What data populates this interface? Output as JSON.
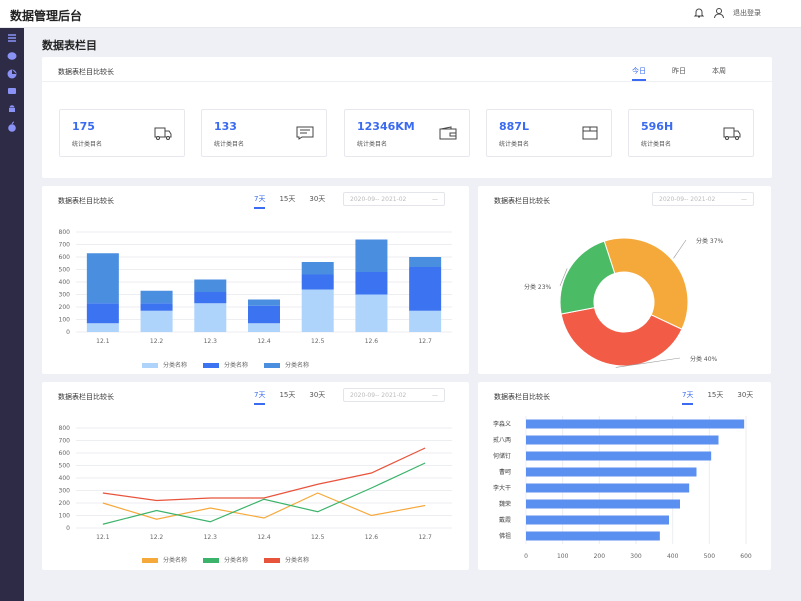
{
  "header": {
    "title": "数据管理后台",
    "logout": "退出登录"
  },
  "page": {
    "title": "数据表栏目"
  },
  "stats_card": {
    "title": "数据表栏目比较长",
    "tabs": [
      "今日",
      "昨日",
      "本周"
    ],
    "active_tab": 0,
    "items": [
      {
        "value": "175",
        "label": "统计类目名",
        "icon": "truck-icon"
      },
      {
        "value": "133",
        "label": "统计类目名",
        "icon": "message-icon"
      },
      {
        "value": "12346KM",
        "label": "统计类目名",
        "icon": "wallet-icon"
      },
      {
        "value": "887L",
        "label": "统计类目名",
        "icon": "box-icon"
      },
      {
        "value": "596H",
        "label": "统计类目名",
        "icon": "truck-icon"
      }
    ]
  },
  "bar_card": {
    "title": "数据表栏目比较长",
    "tabs": [
      "7天",
      "15天",
      "30天"
    ],
    "range": "2020-09-- 2021-02"
  },
  "pie_card": {
    "title": "数据表栏目比较长",
    "range": "2020-09-- 2021-02"
  },
  "line_card": {
    "title": "数据表栏目比较长",
    "tabs": [
      "7天",
      "15天",
      "30天"
    ],
    "range": "2020-09-- 2021-02"
  },
  "hbar_card": {
    "title": "数据表栏目比较长",
    "tabs": [
      "7天",
      "15天",
      "30天"
    ]
  },
  "colors": {
    "accent": "#3a6bf0",
    "sidebar": "#2e2b47"
  },
  "chart_data": [
    {
      "type": "bar",
      "stacked": true,
      "categories": [
        "12.1",
        "12.2",
        "12.3",
        "12.4",
        "12.5",
        "12.6",
        "12.7"
      ],
      "ylim": [
        0,
        800
      ],
      "yticks": [
        0,
        100,
        200,
        300,
        400,
        500,
        600,
        700,
        800
      ],
      "legend_position": "bottom",
      "series": [
        {
          "name": "分类名称",
          "color": "#aed4fb",
          "values": [
            70,
            170,
            230,
            70,
            340,
            300,
            170
          ]
        },
        {
          "name": "分类名称",
          "color": "#3c73f0",
          "values": [
            160,
            60,
            90,
            140,
            120,
            180,
            350
          ]
        },
        {
          "name": "分类名称",
          "color": "#4a8ee0",
          "values": [
            400,
            100,
            100,
            50,
            100,
            260,
            80
          ]
        }
      ]
    },
    {
      "type": "pie",
      "donut": true,
      "slices": [
        {
          "label": "分类 37%",
          "value": 37,
          "color": "#f6a93b"
        },
        {
          "label": "分类 40%",
          "value": 40,
          "color": "#f25c46"
        },
        {
          "label": "分类 23%",
          "value": 23,
          "color": "#4bbb66"
        }
      ]
    },
    {
      "type": "line",
      "categories": [
        "12.1",
        "12.2",
        "12.3",
        "12.4",
        "12.5",
        "12.6",
        "12.7"
      ],
      "ylim": [
        0,
        800
      ],
      "yticks": [
        0,
        100,
        200,
        300,
        400,
        500,
        600,
        700,
        800
      ],
      "legend_position": "bottom",
      "series": [
        {
          "name": "分类名称",
          "color": "#f6a93b",
          "values": [
            200,
            70,
            160,
            80,
            280,
            100,
            180
          ]
        },
        {
          "name": "分类名称",
          "color": "#3bb36a",
          "values": [
            30,
            140,
            50,
            230,
            130,
            320,
            520
          ]
        },
        {
          "name": "分类名称",
          "color": "#e8533c",
          "values": [
            280,
            220,
            240,
            240,
            350,
            440,
            640
          ]
        }
      ]
    },
    {
      "type": "bar",
      "orientation": "horizontal",
      "categories": [
        "李淼义",
        "贰八两",
        "何储钉",
        "曹呵",
        "李大干",
        "魏荣",
        "戴霞",
        "佛祖"
      ],
      "xlim": [
        0,
        600
      ],
      "xticks": [
        0,
        100,
        200,
        300,
        400,
        500,
        600
      ],
      "color": "#5b8ff0",
      "values": [
        595,
        525,
        505,
        465,
        445,
        420,
        390,
        365
      ]
    }
  ]
}
